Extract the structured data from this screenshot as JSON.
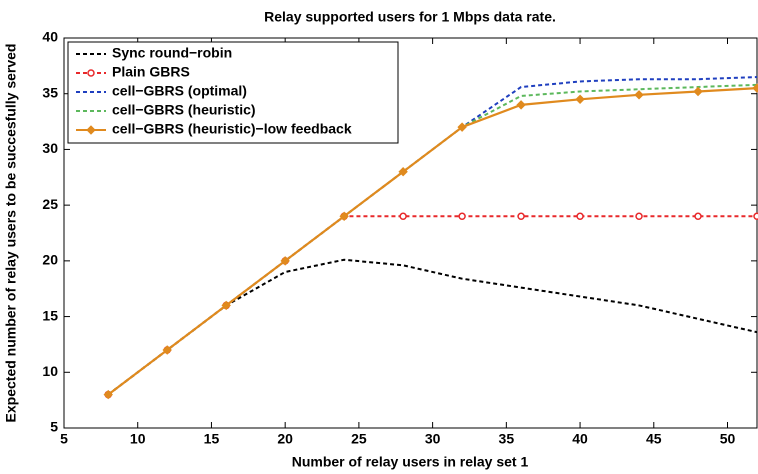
{
  "chart_data": {
    "type": "line",
    "title": "Relay supported users for 1 Mbps data rate.",
    "xlabel": "Number of relay users in relay set 1",
    "ylabel": "Expected number of relay users to be succesfully served",
    "x": [
      8,
      12,
      16,
      20,
      24,
      28,
      32,
      36,
      40,
      44,
      48,
      52
    ],
    "series": [
      {
        "name": "Sync round−robin",
        "color": "#000000",
        "dash": true,
        "marker": null,
        "values": [
          8,
          12,
          16,
          19,
          20.1,
          19.6,
          18.4,
          17.6,
          16.8,
          16,
          14.8,
          13.6
        ]
      },
      {
        "name": "Plain GBRS",
        "color": "#e8292b",
        "dash": true,
        "marker": "circle",
        "values": [
          8,
          12,
          16,
          20,
          24,
          24,
          24,
          24,
          24,
          24,
          24,
          24
        ]
      },
      {
        "name": "cell−GBRS (optimal)",
        "color": "#1f3fbf",
        "dash": true,
        "marker": null,
        "values": [
          8,
          12,
          16,
          20,
          24,
          28,
          32,
          35.6,
          36.1,
          36.3,
          36.3,
          36.5
        ]
      },
      {
        "name": "cell−GBRS (heuristic)",
        "color": "#5cb85c",
        "dash": true,
        "marker": null,
        "values": [
          8,
          12,
          16,
          20,
          24,
          28,
          32,
          34.8,
          35.2,
          35.4,
          35.6,
          35.8
        ]
      },
      {
        "name": "cell−GBRS (heuristic)−low feedback",
        "color": "#e08a1e",
        "dash": false,
        "marker": "diamond",
        "values": [
          8,
          12,
          16,
          20,
          24,
          28,
          32,
          34,
          34.5,
          34.9,
          35.2,
          35.5
        ]
      }
    ],
    "xlim": [
      5,
      52
    ],
    "xticks": [
      5,
      10,
      15,
      20,
      25,
      30,
      35,
      40,
      45,
      50
    ],
    "ylim": [
      5,
      40
    ],
    "yticks": [
      5,
      10,
      15,
      20,
      25,
      30,
      35,
      40
    ],
    "legend": "upper left"
  }
}
